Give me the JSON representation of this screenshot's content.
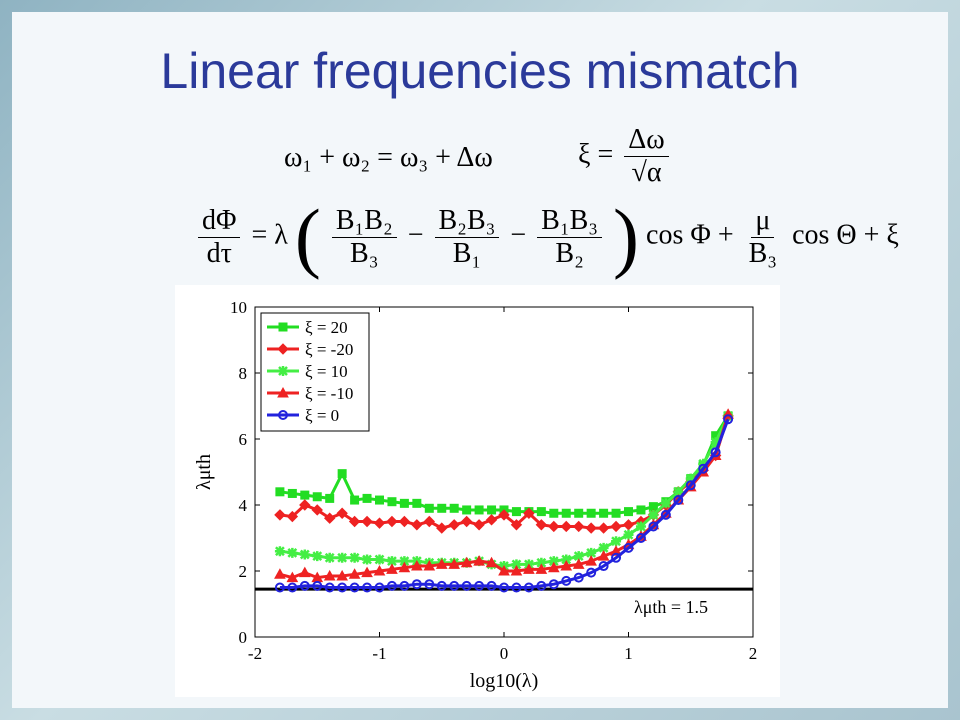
{
  "slide": {
    "title": "Linear frequencies mismatch"
  },
  "equations": {
    "eq1": "ω₁ + ω₂ = ω₃ + Δω",
    "eq2_lhs": "ξ =",
    "eq2_num": "Δω",
    "eq2_den": "√α",
    "eq3_lhs_num": "dΦ",
    "eq3_lhs_den": "dτ",
    "eq3_eq": "= λ",
    "eq3_t1_num": "B₁B₂",
    "eq3_t1_den": "B₃",
    "eq3_minus1": "−",
    "eq3_t2_num": "B₂B₃",
    "eq3_t2_den": "B₁",
    "eq3_minus2": "−",
    "eq3_t3_num": "B₁B₃",
    "eq3_t3_den": "B₂",
    "eq3_cos1": "cos Φ +",
    "eq3_mu_num": "μ",
    "eq3_mu_den": "B₃",
    "eq3_tail": "cos Θ + ξ"
  },
  "chart_data": {
    "type": "line",
    "xlabel": "log10(λ)",
    "ylabel": "λμth",
    "xlim": [
      -2,
      2
    ],
    "ylim": [
      0,
      10
    ],
    "xticks": [
      "-2",
      "-1",
      "0",
      "1",
      "2"
    ],
    "yticks": [
      "0",
      "2",
      "4",
      "6",
      "8",
      "10"
    ],
    "legend_position": "top-left",
    "annotation": "λμth = 1.5",
    "reference_line": 1.45,
    "x": [
      -1.8,
      -1.7,
      -1.6,
      -1.5,
      -1.4,
      -1.3,
      -1.2,
      -1.1,
      -1.0,
      -0.9,
      -0.8,
      -0.7,
      -0.6,
      -0.5,
      -0.4,
      -0.3,
      -0.2,
      -0.1,
      0.0,
      0.1,
      0.2,
      0.3,
      0.4,
      0.5,
      0.6,
      0.7,
      0.8,
      0.9,
      1.0,
      1.1,
      1.2,
      1.3,
      1.4,
      1.5,
      1.6,
      1.7,
      1.8
    ],
    "series": [
      {
        "name": "ξ = 20",
        "color": "#22dd22",
        "marker": "square",
        "values": [
          4.4,
          4.35,
          4.3,
          4.25,
          4.2,
          4.95,
          4.15,
          4.2,
          4.15,
          4.1,
          4.05,
          4.05,
          3.9,
          3.9,
          3.9,
          3.85,
          3.85,
          3.85,
          3.85,
          3.8,
          3.8,
          3.8,
          3.75,
          3.75,
          3.75,
          3.75,
          3.75,
          3.75,
          3.8,
          3.85,
          3.95,
          4.1,
          4.4,
          4.8,
          5.2,
          6.1,
          6.7
        ]
      },
      {
        "name": "ξ = -20",
        "color": "#ee2222",
        "marker": "diamond",
        "values": [
          3.7,
          3.65,
          4.0,
          3.85,
          3.6,
          3.75,
          3.5,
          3.5,
          3.45,
          3.5,
          3.5,
          3.4,
          3.5,
          3.3,
          3.4,
          3.5,
          3.4,
          3.55,
          3.7,
          3.4,
          3.75,
          3.4,
          3.35,
          3.35,
          3.35,
          3.3,
          3.3,
          3.35,
          3.4,
          3.5,
          3.7,
          4.0,
          4.4,
          4.7,
          5.05,
          5.5,
          6.7
        ]
      },
      {
        "name": "ξ = 10",
        "color": "#44ee44",
        "marker": "star",
        "values": [
          2.6,
          2.55,
          2.5,
          2.45,
          2.4,
          2.4,
          2.4,
          2.35,
          2.35,
          2.3,
          2.3,
          2.3,
          2.25,
          2.25,
          2.25,
          2.25,
          2.3,
          2.2,
          2.15,
          2.2,
          2.2,
          2.25,
          2.3,
          2.35,
          2.45,
          2.55,
          2.7,
          2.9,
          3.1,
          3.35,
          3.7,
          4.05,
          4.4,
          4.8,
          5.25,
          5.9,
          6.7
        ]
      },
      {
        "name": "ξ = -10",
        "color": "#ee2222",
        "marker": "triangle",
        "values": [
          1.9,
          1.8,
          1.95,
          1.8,
          1.85,
          1.85,
          1.9,
          1.95,
          2.0,
          2.05,
          2.1,
          2.15,
          2.15,
          2.2,
          2.2,
          2.25,
          2.3,
          2.25,
          2.0,
          2.0,
          2.05,
          2.05,
          2.1,
          2.15,
          2.2,
          2.3,
          2.45,
          2.6,
          2.8,
          3.05,
          3.4,
          3.75,
          4.15,
          4.55,
          5.0,
          5.5,
          6.75
        ]
      },
      {
        "name": "ξ = 0",
        "color": "#2222dd",
        "marker": "circle",
        "values": [
          1.5,
          1.5,
          1.55,
          1.55,
          1.5,
          1.5,
          1.5,
          1.5,
          1.5,
          1.55,
          1.55,
          1.6,
          1.6,
          1.55,
          1.55,
          1.55,
          1.55,
          1.55,
          1.5,
          1.5,
          1.5,
          1.55,
          1.6,
          1.7,
          1.8,
          1.95,
          2.15,
          2.4,
          2.7,
          3.0,
          3.35,
          3.7,
          4.15,
          4.6,
          5.1,
          5.6,
          6.6
        ]
      }
    ]
  }
}
